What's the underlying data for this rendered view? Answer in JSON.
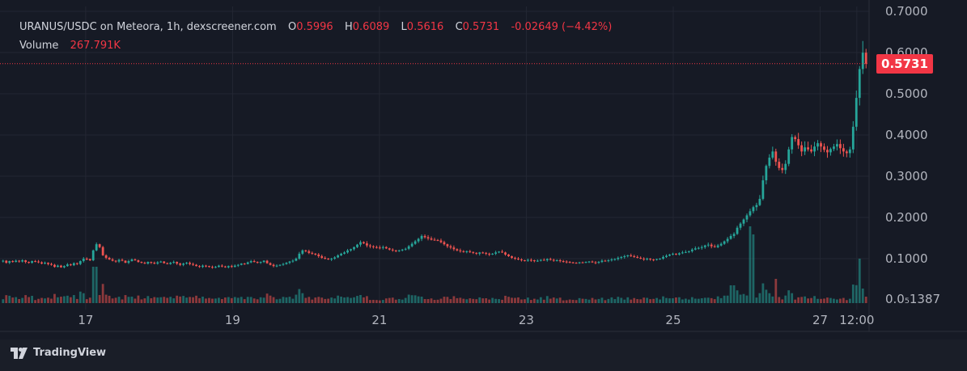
{
  "legend": {
    "title": "URANUS/USDC on Meteora, 1h, dexscreener.com",
    "o_label": "O",
    "o_value": "0.5996",
    "h_label": "H",
    "h_value": "0.6089",
    "l_label": "L",
    "l_value": "0.5616",
    "c_label": "C",
    "c_value": "0.5731",
    "change": "-0.02649 (−4.42%)",
    "volume_label": "Volume",
    "volume_value": "267.791K"
  },
  "price_tag": "0.5731",
  "brand": "TradingView",
  "colors": {
    "up": "#26a69a",
    "down": "#ef5350",
    "last_price": "#f23645",
    "background": "#161a25",
    "grid": "#232733",
    "axis_text": "#b2b5be"
  },
  "chart_data": {
    "type": "candlestick",
    "symbol": "URANUS/USDC",
    "interval": "1h",
    "y_ticks": [
      "0.7000",
      "0.6000",
      "0.5000",
      "0.4000",
      "0.3000",
      "0.2000",
      "0.1000",
      "0.0₅1387"
    ],
    "y_tick_values": [
      0.7,
      0.6,
      0.5,
      0.4,
      0.3,
      0.2,
      0.1
    ],
    "ylim": [
      0.0,
      0.7
    ],
    "x_ticks": [
      "17",
      "19",
      "21",
      "23",
      "25",
      "27",
      "12:00"
    ],
    "x_tick_hours": [
      24,
      72,
      120,
      168,
      216,
      264,
      276
    ],
    "hour_range": [
      -4,
      280
    ],
    "last_price": 0.5731,
    "last_bar": {
      "open": 0.5996,
      "high": 0.6089,
      "low": 0.5616,
      "close": 0.5731,
      "volume": "267.791K"
    },
    "close_series": [
      0.095,
      0.09,
      0.094,
      0.092,
      0.095,
      0.093,
      0.096,
      0.092,
      0.09,
      0.094,
      0.093,
      0.091,
      0.088,
      0.09,
      0.087,
      0.085,
      0.08,
      0.083,
      0.079,
      0.082,
      0.086,
      0.084,
      0.089,
      0.087,
      0.094,
      0.1,
      0.099,
      0.096,
      0.12,
      0.135,
      0.128,
      0.108,
      0.102,
      0.098,
      0.095,
      0.093,
      0.097,
      0.095,
      0.09,
      0.094,
      0.098,
      0.096,
      0.092,
      0.09,
      0.088,
      0.092,
      0.09,
      0.088,
      0.091,
      0.093,
      0.089,
      0.087,
      0.09,
      0.092,
      0.088,
      0.085,
      0.088,
      0.09,
      0.087,
      0.085,
      0.082,
      0.08,
      0.083,
      0.082,
      0.08,
      0.078,
      0.08,
      0.083,
      0.081,
      0.079,
      0.082,
      0.08,
      0.083,
      0.085,
      0.088,
      0.087,
      0.091,
      0.094,
      0.092,
      0.09,
      0.092,
      0.095,
      0.089,
      0.085,
      0.082,
      0.083,
      0.085,
      0.087,
      0.09,
      0.093,
      0.095,
      0.1,
      0.112,
      0.12,
      0.118,
      0.114,
      0.112,
      0.11,
      0.106,
      0.102,
      0.1,
      0.098,
      0.1,
      0.103,
      0.108,
      0.112,
      0.115,
      0.12,
      0.123,
      0.128,
      0.134,
      0.14,
      0.137,
      0.132,
      0.13,
      0.128,
      0.127,
      0.126,
      0.128,
      0.125,
      0.122,
      0.12,
      0.118,
      0.12,
      0.122,
      0.124,
      0.13,
      0.136,
      0.142,
      0.148,
      0.155,
      0.152,
      0.149,
      0.146,
      0.145,
      0.144,
      0.14,
      0.135,
      0.13,
      0.127,
      0.123,
      0.12,
      0.118,
      0.117,
      0.118,
      0.116,
      0.114,
      0.112,
      0.115,
      0.114,
      0.112,
      0.11,
      0.112,
      0.115,
      0.117,
      0.115,
      0.11,
      0.106,
      0.102,
      0.1,
      0.098,
      0.096,
      0.095,
      0.097,
      0.096,
      0.094,
      0.095,
      0.097,
      0.096,
      0.099,
      0.097,
      0.095,
      0.096,
      0.094,
      0.093,
      0.092,
      0.091,
      0.09,
      0.089,
      0.091,
      0.09,
      0.092,
      0.093,
      0.091,
      0.09,
      0.092,
      0.095,
      0.094,
      0.096,
      0.098,
      0.099,
      0.102,
      0.104,
      0.106,
      0.108,
      0.106,
      0.104,
      0.102,
      0.1,
      0.098,
      0.1,
      0.098,
      0.097,
      0.099,
      0.1,
      0.104,
      0.107,
      0.11,
      0.112,
      0.11,
      0.113,
      0.115,
      0.116,
      0.118,
      0.122,
      0.125,
      0.126,
      0.128,
      0.132,
      0.134,
      0.13,
      0.128,
      0.132,
      0.136,
      0.142,
      0.148,
      0.155,
      0.16,
      0.175,
      0.185,
      0.195,
      0.205,
      0.215,
      0.225,
      0.23,
      0.245,
      0.29,
      0.325,
      0.345,
      0.36,
      0.335,
      0.32,
      0.315,
      0.33,
      0.365,
      0.395,
      0.39,
      0.375,
      0.36,
      0.37,
      0.365,
      0.36,
      0.372,
      0.38,
      0.372,
      0.364,
      0.358,
      0.366,
      0.372,
      0.378,
      0.368,
      0.36,
      0.356,
      0.365,
      0.42,
      0.49,
      0.56,
      0.5996,
      0.5731
    ]
  }
}
